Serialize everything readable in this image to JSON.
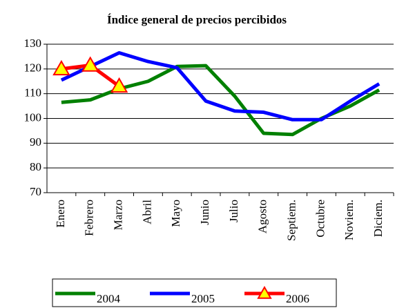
{
  "chart_data": {
    "type": "line",
    "title": "Índice general de precios percibidos",
    "categories": [
      "Enero",
      "Febrero",
      "Marzo",
      "Abril",
      "Mayo",
      "Junio",
      "Julio",
      "Agosto",
      "Septiem.",
      "Octubre",
      "Noviem.",
      "Diciem."
    ],
    "series": [
      {
        "name": "2004",
        "color": "#008000",
        "values": [
          106.5,
          107.5,
          112,
          115,
          121,
          121.3,
          109,
          94,
          93.5,
          100,
          105,
          111.5
        ]
      },
      {
        "name": "2005",
        "color": "#0000ff",
        "values": [
          115.5,
          121,
          126.5,
          123,
          120.5,
          107,
          103,
          102.5,
          99.5,
          99.5,
          107,
          114
        ]
      },
      {
        "name": "2006",
        "color": "#ff0000",
        "marker": "triangle",
        "marker_color": "#ffff00",
        "values": [
          120,
          121.5,
          113,
          null,
          null,
          null,
          null,
          null,
          null,
          null,
          null,
          null
        ]
      }
    ],
    "ylim": [
      70,
      130
    ],
    "yticks": [
      70,
      80,
      90,
      100,
      110,
      120,
      130
    ],
    "grid": true,
    "legend": "bottom"
  }
}
